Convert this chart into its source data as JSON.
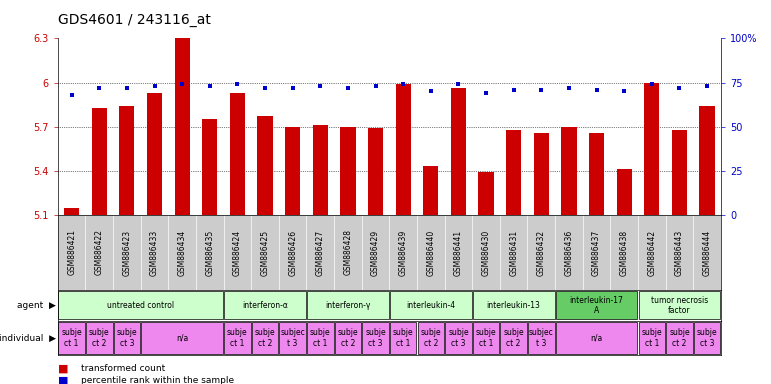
{
  "title": "GDS4601 / 243116_at",
  "samples": [
    "GSM886421",
    "GSM886422",
    "GSM886423",
    "GSM886433",
    "GSM886434",
    "GSM886435",
    "GSM886424",
    "GSM886425",
    "GSM886426",
    "GSM886427",
    "GSM886428",
    "GSM886429",
    "GSM886439",
    "GSM886440",
    "GSM886441",
    "GSM886430",
    "GSM886431",
    "GSM886432",
    "GSM886436",
    "GSM886437",
    "GSM886438",
    "GSM886442",
    "GSM886443",
    "GSM886444"
  ],
  "red_values": [
    5.15,
    5.83,
    5.84,
    5.93,
    6.31,
    5.75,
    5.93,
    5.77,
    5.7,
    5.71,
    5.7,
    5.69,
    5.99,
    5.43,
    5.96,
    5.39,
    5.68,
    5.66,
    5.7,
    5.66,
    5.41,
    6.0,
    5.68,
    5.84
  ],
  "blue_values": [
    68,
    72,
    72,
    73,
    74,
    73,
    74,
    72,
    72,
    73,
    72,
    73,
    74,
    70,
    74,
    69,
    71,
    71,
    72,
    71,
    70,
    74,
    72,
    73
  ],
  "ymin": 5.1,
  "ymax": 6.3,
  "yticks": [
    5.1,
    5.4,
    5.7,
    6.0,
    6.3
  ],
  "ytick_labels": [
    "5.1",
    "5.4",
    "5.7",
    "6",
    "6.3"
  ],
  "right_yticks": [
    0,
    25,
    50,
    75,
    100
  ],
  "right_ytick_labels": [
    "0",
    "25",
    "50",
    "75",
    "100%"
  ],
  "agent_groups": [
    {
      "label": "untreated control",
      "start": 0,
      "end": 6,
      "color": "#ccffcc"
    },
    {
      "label": "interferon-α",
      "start": 6,
      "end": 9,
      "color": "#ccffcc"
    },
    {
      "label": "interferon-γ",
      "start": 9,
      "end": 12,
      "color": "#ccffcc"
    },
    {
      "label": "interleukin-4",
      "start": 12,
      "end": 15,
      "color": "#ccffcc"
    },
    {
      "label": "interleukin-13",
      "start": 15,
      "end": 18,
      "color": "#ccffcc"
    },
    {
      "label": "interleukin-17\nA",
      "start": 18,
      "end": 21,
      "color": "#66cc66"
    },
    {
      "label": "tumor necrosis\nfactor",
      "start": 21,
      "end": 24,
      "color": "#ccffcc"
    }
  ],
  "indiv_groups": [
    {
      "label": "subje\nct 1",
      "start": 0,
      "end": 1
    },
    {
      "label": "subje\nct 2",
      "start": 1,
      "end": 2
    },
    {
      "label": "subje\nct 3",
      "start": 2,
      "end": 3
    },
    {
      "label": "n/a",
      "start": 3,
      "end": 6
    },
    {
      "label": "subje\nct 1",
      "start": 6,
      "end": 7
    },
    {
      "label": "subje\nct 2",
      "start": 7,
      "end": 8
    },
    {
      "label": "subjec\nt 3",
      "start": 8,
      "end": 9
    },
    {
      "label": "subje\nct 1",
      "start": 9,
      "end": 10
    },
    {
      "label": "subje\nct 2",
      "start": 10,
      "end": 11
    },
    {
      "label": "subje\nct 3",
      "start": 11,
      "end": 12
    },
    {
      "label": "subje\nct 1",
      "start": 12,
      "end": 13
    },
    {
      "label": "subje\nct 2",
      "start": 13,
      "end": 14
    },
    {
      "label": "subje\nct 3",
      "start": 14,
      "end": 15
    },
    {
      "label": "subje\nct 1",
      "start": 15,
      "end": 16
    },
    {
      "label": "subje\nct 2",
      "start": 16,
      "end": 17
    },
    {
      "label": "subjec\nt 3",
      "start": 17,
      "end": 18
    },
    {
      "label": "n/a",
      "start": 18,
      "end": 21
    },
    {
      "label": "subje\nct 1",
      "start": 21,
      "end": 22
    },
    {
      "label": "subje\nct 2",
      "start": 22,
      "end": 23
    },
    {
      "label": "subje\nct 3",
      "start": 23,
      "end": 24
    }
  ],
  "bar_color": "#cc0000",
  "dot_color": "#0000cc",
  "gsm_bg_color": "#cccccc",
  "agent_indiv_bg": "#ffffff",
  "indiv_color": "#ee88ee",
  "bg_color": "#ffffff",
  "title_fontsize": 10,
  "tick_fontsize": 7,
  "label_fontsize": 7,
  "gsm_fontsize": 5.5,
  "cell_fontsize": 5.5
}
